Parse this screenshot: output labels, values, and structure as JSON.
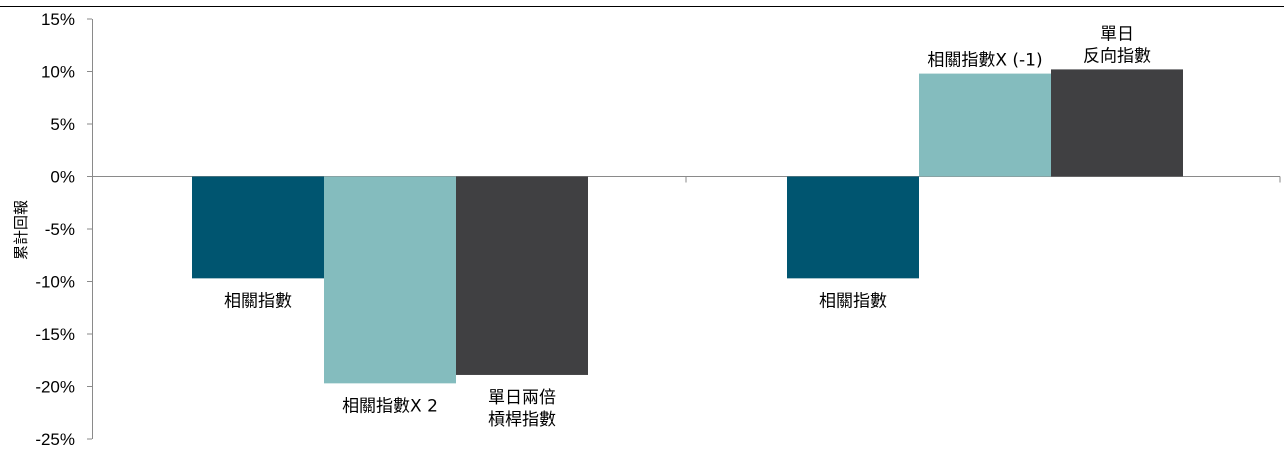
{
  "chart_data": {
    "type": "bar",
    "ylabel": "累計回報",
    "ylim": [
      -25,
      15
    ],
    "yticks": [
      15,
      10,
      5,
      0,
      -5,
      -10,
      -15,
      -20,
      -25
    ],
    "ytick_labels": [
      "15%",
      "10%",
      "5%",
      "0%",
      "-5%",
      "-10%",
      "-15%",
      "-20%",
      "-25%"
    ],
    "groups": [
      {
        "bars": [
          {
            "label": [
              "相關指數"
            ],
            "value": -9.7,
            "color": "#005570"
          },
          {
            "label": [
              "相關指數X 2"
            ],
            "value": -19.7,
            "color": "#84bcbe"
          },
          {
            "label": [
              "單日兩倍",
              "槓桿指數"
            ],
            "value": -18.9,
            "color": "#404042"
          }
        ]
      },
      {
        "bars": [
          {
            "label": [
              "相關指數"
            ],
            "value": -9.7,
            "color": "#005570"
          },
          {
            "label": [
              "相關指數X (-1)"
            ],
            "value": 9.8,
            "color": "#84bcbe"
          },
          {
            "label": [
              "單日",
              "反向指數"
            ],
            "value": 10.2,
            "color": "#404042"
          }
        ]
      }
    ]
  }
}
